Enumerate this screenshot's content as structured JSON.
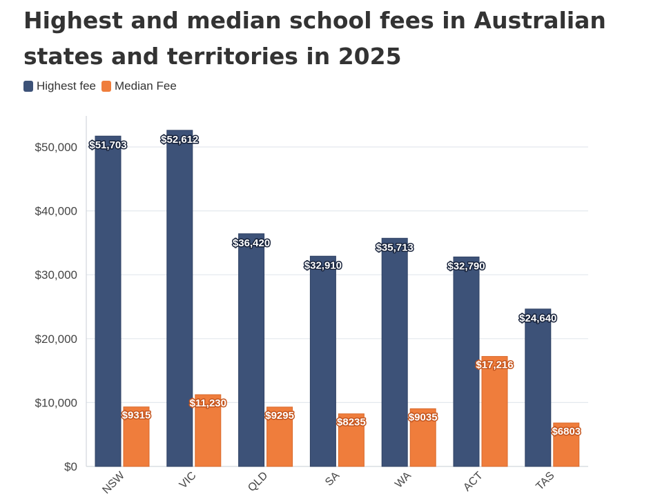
{
  "chart_data": {
    "type": "bar",
    "title": "Highest and median school fees in Australian states and territories in 2025",
    "xlabel": "",
    "ylabel": "",
    "categories": [
      "NSW",
      "VIC",
      "QLD",
      "SA",
      "WA",
      "ACT",
      "TAS"
    ],
    "series": [
      {
        "name": "Highest fee",
        "color": "#3d5278",
        "values": [
          51703,
          52612,
          36420,
          32910,
          35713,
          32790,
          24640
        ],
        "labels": [
          "$51,703",
          "$52,612",
          "$36,420",
          "$32,910",
          "$35,713",
          "$32,790",
          "$24,640"
        ]
      },
      {
        "name": "Median Fee",
        "color": "#ef7d3c",
        "values": [
          9315,
          11230,
          9295,
          8235,
          9035,
          17216,
          6803
        ],
        "labels": [
          "$9315",
          "$11,230",
          "$9295",
          "$8235",
          "$9035",
          "$17,216",
          "$6803"
        ]
      }
    ],
    "y_ticks": [
      0,
      10000,
      20000,
      30000,
      40000,
      50000
    ],
    "y_tick_labels": [
      "$0",
      "$10,000",
      "$20,000",
      "$30,000",
      "$40,000",
      "$50,000"
    ],
    "ylim": [
      0,
      55000
    ],
    "grid": true,
    "legend_position": "top-left",
    "category_labels_rotated": true
  }
}
